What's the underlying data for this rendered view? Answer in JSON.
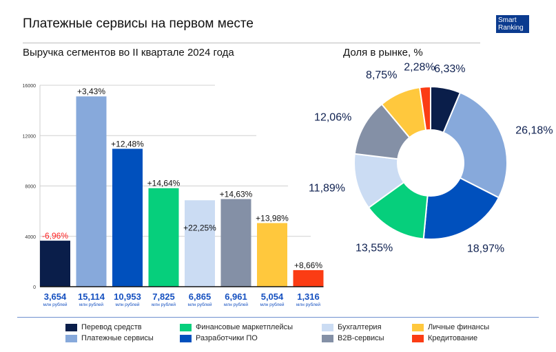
{
  "header": {
    "title": "Платежные сервисы на первом месте",
    "logo": "Smart Ranking",
    "bar_subtitle": "Выручка сегментов во II квартале 2024 года",
    "pie_subtitle": "Доля в рынке, %"
  },
  "chart_data": [
    {
      "type": "bar",
      "title": "Выручка сегментов во II квартале 2024 года",
      "ylim": [
        0,
        16000
      ],
      "yticks": [
        "0",
        "4000",
        "8000",
        "12000",
        "16000"
      ],
      "categories": [
        "Перевод средств",
        "Платежные сервисы",
        "Разработчики ПО",
        "Финансовые маркетплейсы",
        "Бухгалтерия",
        "B2B-сервисы",
        "Личные финансы",
        "Кредитование"
      ],
      "values": [
        3654,
        15114,
        10953,
        7825,
        6865,
        6961,
        5054,
        1316
      ],
      "value_labels": [
        "3,654",
        "15,114",
        "10,953",
        "7,825",
        "6,865",
        "6,961",
        "5,054",
        "1,316"
      ],
      "unit_label": "млн рублей",
      "change_labels": [
        "-6,96%",
        "+3,43%",
        "+12,48%",
        "+14,64%",
        "+22,25%",
        "+14,63%",
        "+13,98%",
        "+8,66%"
      ],
      "colors": [
        "#0a1e4a",
        "#87a9db",
        "#0050bd",
        "#06cf7c",
        "#cbdcf3",
        "#8490a6",
        "#ffc83d",
        "#fb3c14"
      ],
      "negative_color": "#ff2020",
      "grid": true
    },
    {
      "type": "pie",
      "title": "Доля в рынке, %",
      "donut": true,
      "categories": [
        "Перевод средств",
        "Платежные сервисы",
        "Разработчики ПО",
        "Финансовые маркетплейсы",
        "Бухгалтерия",
        "B2B-сервисы",
        "Личные финансы",
        "Кредитование"
      ],
      "values": [
        6.33,
        26.18,
        18.97,
        13.55,
        11.89,
        12.06,
        8.75,
        2.28
      ],
      "labels": [
        "6,33%",
        "26,18%",
        "18,97%",
        "13,55%",
        "11,89%",
        "12,06%",
        "8,75%",
        "2,28%"
      ],
      "colors": [
        "#0a1e4a",
        "#87a9db",
        "#0050bd",
        "#06cf7c",
        "#cbdcf3",
        "#8490a6",
        "#ffc83d",
        "#fb3c14"
      ]
    }
  ],
  "legend": [
    {
      "label": "Перевод средств",
      "color": "#0a1e4a"
    },
    {
      "label": "Платежные сервисы",
      "color": "#87a9db"
    },
    {
      "label": "Финансовые маркетплейсы",
      "color": "#06cf7c"
    },
    {
      "label": "Разработчики ПО",
      "color": "#0050bd"
    },
    {
      "label": "Бухгалтерия",
      "color": "#cbdcf3"
    },
    {
      "label": "B2B-сервисы",
      "color": "#8490a6"
    },
    {
      "label": "Личные финансы",
      "color": "#ffc83d"
    },
    {
      "label": "Кредитование",
      "color": "#fb3c14"
    }
  ]
}
